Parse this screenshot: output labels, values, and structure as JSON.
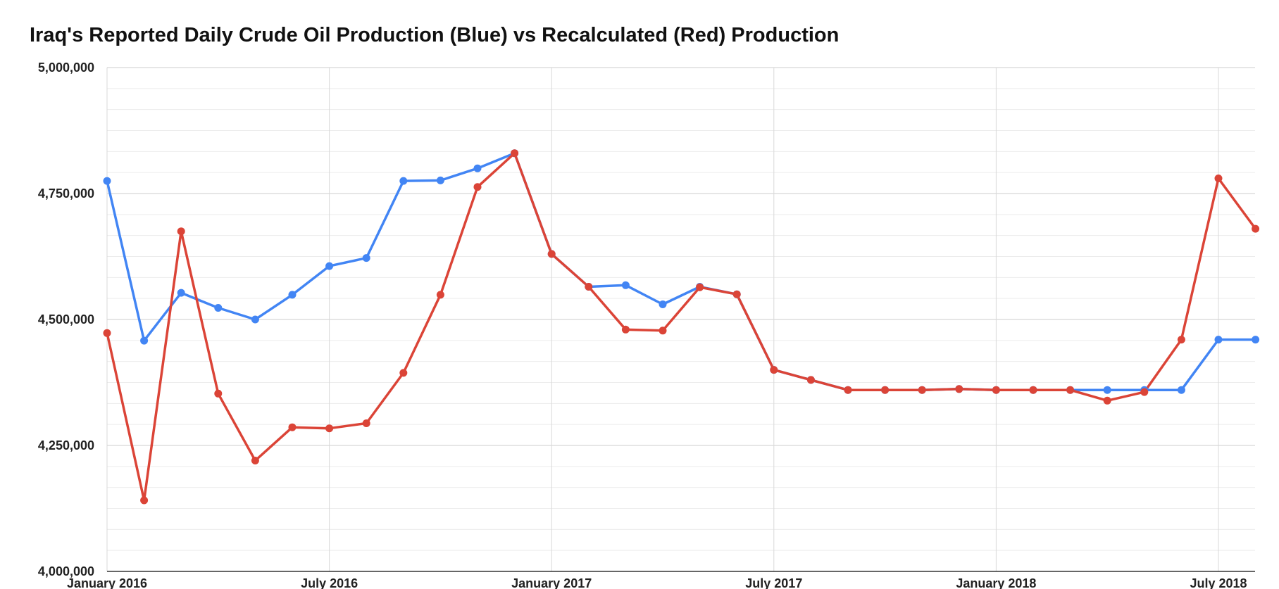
{
  "chart_data": {
    "type": "line",
    "title": "Iraq's Reported Daily Crude Oil Production (Blue) vs Recalculated (Red) Production",
    "xlabel": "",
    "ylabel": "",
    "ylim": [
      4000000,
      5000000
    ],
    "y_ticks": [
      "4,000,000",
      "4,250,000",
      "4,500,000",
      "4,750,000",
      "5,000,000"
    ],
    "y_tick_values": [
      4000000,
      4250000,
      4500000,
      4750000,
      5000000
    ],
    "x_ticks": [
      "January 2016",
      "July 2016",
      "January 2017",
      "July 2017",
      "January 2018",
      "July 2018"
    ],
    "x_tick_values": [
      "2016-01",
      "2016-07",
      "2017-01",
      "2017-07",
      "2018-01",
      "2018-07"
    ],
    "x_range": [
      "2016-01",
      "2018-08"
    ],
    "grid": true,
    "legend": "none",
    "x": [
      "2016-01",
      "2016-02",
      "2016-03",
      "2016-04",
      "2016-05",
      "2016-06",
      "2016-07",
      "2016-08",
      "2016-09",
      "2016-10",
      "2016-11",
      "2016-12",
      "2017-01",
      "2017-02",
      "2017-03",
      "2017-04",
      "2017-05",
      "2017-06",
      "2017-07",
      "2017-08",
      "2017-09",
      "2017-10",
      "2017-11",
      "2017-12",
      "2018-01",
      "2018-02",
      "2018-03",
      "2018-04",
      "2018-05",
      "2018-06",
      "2018-07",
      "2018-08"
    ],
    "series": [
      {
        "color": "#4285f4",
        "values": [
          4775000,
          4458000,
          4553000,
          4523000,
          4500000,
          4549000,
          4606000,
          4622000,
          4775000,
          4776000,
          4800000,
          4830000,
          4630000,
          4565000,
          4568000,
          4530000,
          4565000,
          4550000,
          4400000,
          4380000,
          4360000,
          4360000,
          4360000,
          4362000,
          4360000,
          4360000,
          4360000,
          4360000,
          4360000,
          4360000,
          4460000,
          4460000
        ]
      },
      {
        "color": "#db4437",
        "values": [
          4473000,
          4141000,
          4675000,
          4353000,
          4220000,
          4286000,
          4284000,
          4294000,
          4394000,
          4549000,
          4763000,
          4830000,
          4630000,
          4565000,
          4480000,
          4478000,
          4564000,
          4550000,
          4400000,
          4380000,
          4360000,
          4360000,
          4360000,
          4362000,
          4360000,
          4360000,
          4360000,
          4339000,
          4356000,
          4460000,
          4780000,
          4680000
        ]
      }
    ]
  }
}
